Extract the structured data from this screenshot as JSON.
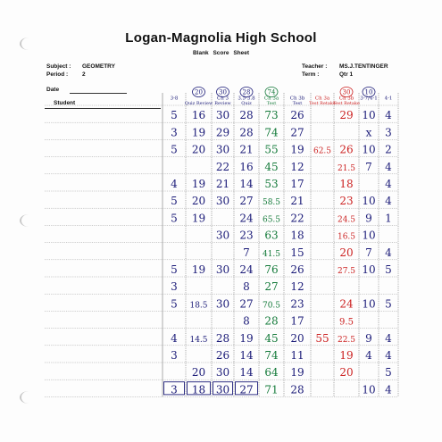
{
  "header": {
    "school": "Logan-Magnolia High School",
    "sheet": "Blank Score Sheet",
    "subject_label": "Subject :",
    "subject": "GEOMETRY",
    "period_label": "Period :",
    "period": "2",
    "teacher_label": "Teacher :",
    "teacher": "MS.J.TENTINGER",
    "term_label": "Term :",
    "term": "Qtr 1",
    "date_label": "Date",
    "student_label": "Student"
  },
  "columns": [
    {
      "date": "3-8",
      "title": "",
      "points": "",
      "color": "#1b1b78"
    },
    {
      "date": "",
      "title": "Quiz Review",
      "points": "20",
      "color": "#1b1b78"
    },
    {
      "date": "Ch 3",
      "title": "Review",
      "points": "30",
      "color": "#1b1b78"
    },
    {
      "date": "3.5-3.8",
      "title": "Quiz",
      "points": "28",
      "color": "#1b1b78"
    },
    {
      "date": "Ch 3a",
      "title": "Test",
      "points": "74",
      "color": "#147a3a"
    },
    {
      "date": "Ch 3b",
      "title": "Test",
      "points": "",
      "color": "#1b1b78"
    },
    {
      "date": "Ch 3a",
      "title": "Test Retake",
      "points": "",
      "color": "#cc2222"
    },
    {
      "date": "Ch 3b",
      "title": "Test Retake",
      "points": "30",
      "color": "#cc2222"
    },
    {
      "date": "3-7/4-1",
      "title": "",
      "points": "10",
      "color": "#1b1b78"
    },
    {
      "date": "4-1",
      "title": "",
      "points": "",
      "color": "#1b1b78"
    }
  ],
  "rows": [
    {
      "cells": [
        "5",
        "16",
        "30",
        "28",
        "73",
        "26",
        "",
        "29",
        "10",
        "4"
      ]
    },
    {
      "cells": [
        "3",
        "19",
        "29",
        "28",
        "74",
        "27",
        "",
        "",
        "x",
        "3"
      ]
    },
    {
      "cells": [
        "5",
        "20",
        "30",
        "21",
        "55",
        "19",
        "62.5",
        "26",
        "10",
        "2"
      ]
    },
    {
      "cells": [
        "",
        "",
        "22",
        "16",
        "45",
        "12",
        "",
        "21.5",
        "7",
        "4"
      ]
    },
    {
      "cells": [
        "4",
        "19",
        "21",
        "14",
        "53",
        "17",
        "",
        "18",
        "",
        "4"
      ]
    },
    {
      "cells": [
        "5",
        "20",
        "30",
        "27",
        "58.5",
        "21",
        "",
        "23",
        "10",
        "4"
      ]
    },
    {
      "cells": [
        "5",
        "19",
        "",
        "24",
        "65.5",
        "22",
        "",
        "24.5",
        "9",
        "1"
      ]
    },
    {
      "cells": [
        "",
        "",
        "30",
        "23",
        "63",
        "18",
        "",
        "16.5",
        "10",
        ""
      ]
    },
    {
      "cells": [
        "",
        "",
        "",
        "7",
        "41.5",
        "15",
        "",
        "20",
        "7",
        "4"
      ]
    },
    {
      "cells": [
        "5",
        "19",
        "30",
        "24",
        "76",
        "26",
        "",
        "27.5",
        "10",
        "5"
      ]
    },
    {
      "cells": [
        "3",
        "",
        "",
        "8",
        "27",
        "12",
        "",
        "",
        "",
        ""
      ]
    },
    {
      "cells": [
        "5",
        "18.5",
        "30",
        "27",
        "70.5",
        "23",
        "",
        "24",
        "10",
        "5"
      ]
    },
    {
      "cells": [
        "",
        "",
        "",
        "8",
        "28",
        "17",
        "",
        "9.5",
        "",
        ""
      ]
    },
    {
      "cells": [
        "4",
        "14.5",
        "28",
        "19",
        "45",
        "20",
        "55",
        "22.5",
        "9",
        "4"
      ]
    },
    {
      "cells": [
        "3",
        "",
        "26",
        "14",
        "74",
        "11",
        "",
        "19",
        "4",
        "4"
      ]
    },
    {
      "cells": [
        "",
        "20",
        "30",
        "14",
        "64",
        "19",
        "",
        "20",
        "",
        "5"
      ]
    },
    {
      "cells": [
        "3",
        "18",
        "30",
        "27",
        "71",
        "28",
        "",
        "",
        "10",
        "4"
      ]
    }
  ]
}
